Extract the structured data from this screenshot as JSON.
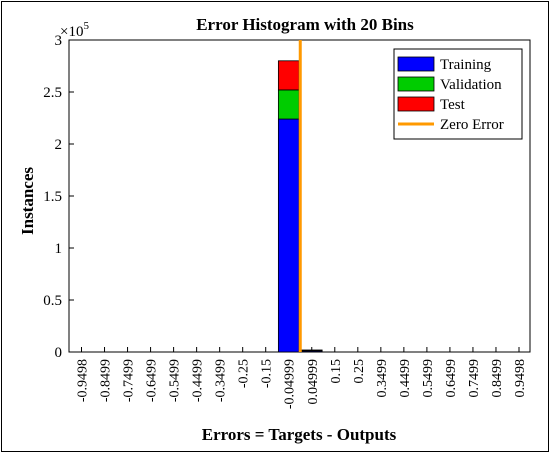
{
  "chart_data": {
    "type": "bar",
    "title": "Error Histogram with 20 Bins",
    "xlabel": "Errors = Targets - Outputs",
    "ylabel": "Instances",
    "y_exponent_label": "×10",
    "y_exponent_power": "5",
    "ylim": [
      0,
      300000
    ],
    "y_ticks": [
      {
        "value": 0,
        "label": "0"
      },
      {
        "value": 50000,
        "label": "0.5"
      },
      {
        "value": 100000,
        "label": "1"
      },
      {
        "value": 150000,
        "label": "1.5"
      },
      {
        "value": 200000,
        "label": "2"
      },
      {
        "value": 250000,
        "label": "2.5"
      },
      {
        "value": 300000,
        "label": "3"
      }
    ],
    "categories": [
      "-0.9498",
      "-0.8499",
      "-0.7499",
      "-0.6499",
      "-0.5499",
      "-0.4499",
      "-0.3499",
      "-0.25",
      "-0.15",
      "-0.04999",
      "0.04999",
      "0.15",
      "0.25",
      "0.3499",
      "0.4499",
      "0.5499",
      "0.6499",
      "0.7499",
      "0.8499",
      "0.9498"
    ],
    "series": [
      {
        "name": "Training",
        "color": "#0000ff",
        "values": [
          0,
          0,
          0,
          0,
          0,
          0,
          0,
          0,
          0,
          224000,
          1500,
          0,
          0,
          0,
          0,
          0,
          0,
          0,
          0,
          0
        ]
      },
      {
        "name": "Validation",
        "color": "#00cc00",
        "values": [
          0,
          0,
          0,
          0,
          0,
          0,
          0,
          0,
          0,
          28000,
          200,
          0,
          0,
          0,
          0,
          0,
          0,
          0,
          0,
          0
        ]
      },
      {
        "name": "Test",
        "color": "#ff0000",
        "values": [
          0,
          0,
          0,
          0,
          0,
          0,
          0,
          0,
          0,
          28000,
          200,
          0,
          0,
          0,
          0,
          0,
          0,
          0,
          0,
          0
        ]
      }
    ],
    "zero_error": {
      "name": "Zero Error",
      "color": "#ff9900",
      "x_category_index": 9.5
    },
    "legend_position": "top-right",
    "grid": false
  }
}
